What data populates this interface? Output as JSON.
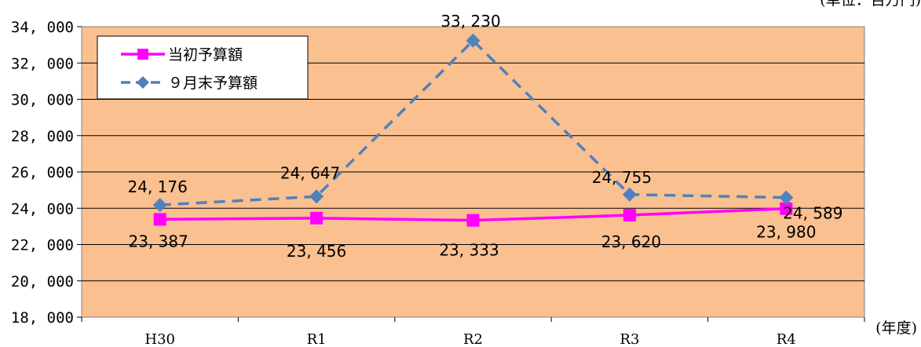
{
  "chart_data": {
    "type": "line",
    "title": "",
    "unit_label": "(単位：百万円)",
    "xlabel": "(年度)",
    "ylabel": "",
    "categories": [
      "H30",
      "R1",
      "R2",
      "R3",
      "R4"
    ],
    "ylim": [
      18000,
      34000
    ],
    "ytick_step": 2000,
    "ytick_labels": [
      "18, 000",
      "20, 000",
      "22, 000",
      "24, 000",
      "26, 000",
      "28, 000",
      "30, 000",
      "32, 000",
      "34, 000"
    ],
    "grid": true,
    "legend_position": "top-left",
    "plot_background": "#FAC090",
    "series": [
      {
        "name": "当初予算額",
        "values": [
          23387,
          23456,
          23333,
          23620,
          23980
        ],
        "labels": [
          "23, 387",
          "23, 456",
          "23, 333",
          "23, 620",
          "23, 980"
        ],
        "color": "#FF00FF",
        "line_style": "solid",
        "marker": "square"
      },
      {
        "name": "９月末予算額",
        "values": [
          24176,
          24647,
          33230,
          24755,
          24589
        ],
        "labels": [
          "24, 176",
          "24, 647",
          "33, 230",
          "24, 755",
          "24, 589"
        ],
        "color": "#4F81BD",
        "line_style": "dashed",
        "marker": "diamond"
      }
    ]
  }
}
